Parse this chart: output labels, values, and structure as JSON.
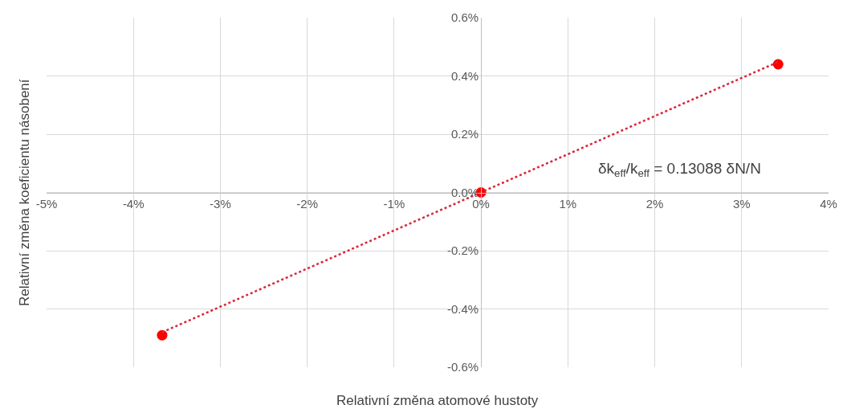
{
  "chart_data": {
    "type": "scatter",
    "xlabel": "Relativní změna atomové hustoty",
    "ylabel": "Relativní změna koeficientu násobení",
    "series": [
      {
        "color": "#ff0000",
        "x": [
          -3.67,
          0,
          3.42
        ],
        "values": [
          -0.49,
          0,
          0.44
        ],
        "marker": "circle"
      },
      {
        "type": "line",
        "color": "#d9263a",
        "x": [
          -3.67,
          3.42
        ],
        "values": [
          -0.48,
          0.448
        ],
        "marker": "none",
        "line_style": "dotted"
      }
    ],
    "annotations": [
      "δk$_{eff}$/k$_{eff}$ = 0.13088 δN/N"
    ],
    "xlim": [
      -5,
      4
    ],
    "xticks": [
      {
        "value": -5,
        "label": "-5%"
      },
      {
        "value": -4,
        "label": "-4%"
      },
      {
        "value": -3,
        "label": "-3%"
      },
      {
        "value": -2,
        "label": "-2%"
      },
      {
        "value": -1,
        "label": "-1%"
      },
      {
        "value": 0,
        "label": "0%"
      },
      {
        "value": 1,
        "label": "1%"
      },
      {
        "value": 2,
        "label": "2%"
      },
      {
        "value": 3,
        "label": "3%"
      },
      {
        "value": 4,
        "label": "4%"
      }
    ],
    "ylim": [
      -0.6,
      0.6
    ],
    "yticks": [
      {
        "value": -0.6,
        "label": "-0.6%"
      },
      {
        "value": -0.4,
        "label": "-0.4%"
      },
      {
        "value": -0.2,
        "label": "-0.2%"
      },
      {
        "value": 0,
        "label": "0.0%"
      },
      {
        "value": 0.2,
        "label": "0.2%"
      },
      {
        "value": 0.4,
        "label": "0.4%"
      },
      {
        "value": 0.6,
        "label": "0.6%"
      }
    ],
    "grid": true
  }
}
